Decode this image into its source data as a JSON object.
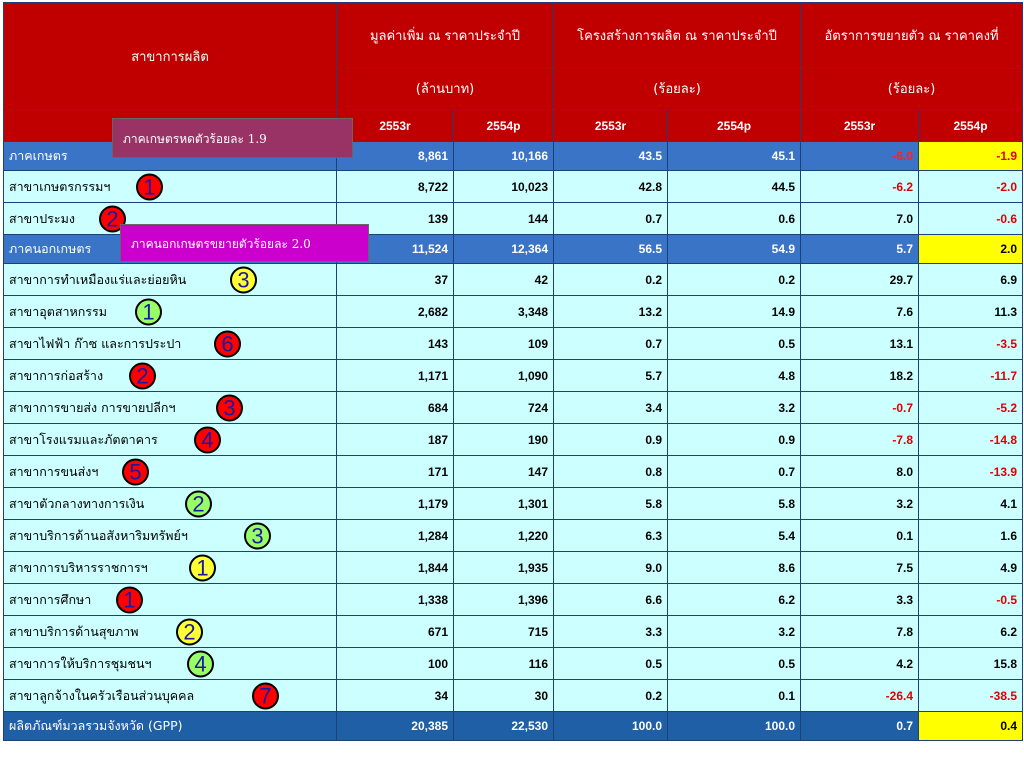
{
  "header": {
    "sector_col": "สาขาการผลิต",
    "groups": [
      {
        "title": "มูลค่าเพิ่ม ณ ราคาประจำปี",
        "unit": "(ล้านบาท)"
      },
      {
        "title": "โครงสร้างการผลิต ณ ราคาประจำปี",
        "unit": "(ร้อยละ)"
      },
      {
        "title": "อัตราการขยายตัว ณ ราคาคงที่",
        "unit": "(ร้อยละ)"
      }
    ],
    "years": [
      "2553r",
      "2554p",
      "2553r",
      "2554p",
      "2553r",
      "2554p"
    ]
  },
  "rows": [
    {
      "name": "ภาคเกษตร",
      "kind": "hl",
      "values": [
        "8,861",
        "10,166",
        "43.5",
        "45.1",
        "-6.0",
        "-1.9"
      ],
      "badge": null
    },
    {
      "name": "สาขาเกษตรกรรมฯ",
      "kind": "row",
      "values": [
        "8,722",
        "10,023",
        "42.8",
        "44.5",
        "-6.2",
        "-2.0"
      ],
      "badge": {
        "num": "1",
        "color": "red",
        "offset": 132
      }
    },
    {
      "name": "สาขาประมง",
      "kind": "row",
      "values": [
        "139",
        "144",
        "0.7",
        "0.6",
        "7.0",
        "-0.6"
      ],
      "badge": {
        "num": "2",
        "color": "red",
        "offset": 95
      }
    },
    {
      "name": "ภาคนอกเกษตร",
      "kind": "hl",
      "values": [
        "11,524",
        "12,364",
        "56.5",
        "54.9",
        "5.7",
        "2.0"
      ],
      "badge": null
    },
    {
      "name": "สาขาการทำเหมืองแร่และย่อยหิน",
      "kind": "row",
      "values": [
        "37",
        "42",
        "0.2",
        "0.2",
        "29.7",
        "6.9"
      ],
      "badge": {
        "num": "3",
        "color": "yellow",
        "offset": 226
      }
    },
    {
      "name": "สาขาอุตสาหกรรม",
      "kind": "row",
      "values": [
        "2,682",
        "3,348",
        "13.2",
        "14.9",
        "7.6",
        "11.3"
      ],
      "badge": {
        "num": "1",
        "color": "green",
        "offset": 131
      }
    },
    {
      "name": "สาขาไฟฟ้า ก๊าซ และการประปา",
      "kind": "row",
      "values": [
        "143",
        "109",
        "0.7",
        "0.5",
        "13.1",
        "-3.5"
      ],
      "badge": {
        "num": "6",
        "color": "red",
        "offset": 210
      }
    },
    {
      "name": "สาขาการก่อสร้าง",
      "kind": "row",
      "values": [
        "1,171",
        "1,090",
        "5.7",
        "4.8",
        "18.2",
        "-11.7"
      ],
      "badge": {
        "num": "2",
        "color": "red",
        "offset": 125
      }
    },
    {
      "name": "สาขาการขายส่ง การขายปลีกฯ",
      "kind": "row",
      "values": [
        "684",
        "724",
        "3.4",
        "3.2",
        "-0.7",
        "-5.2"
      ],
      "badge": {
        "num": "3",
        "color": "red",
        "offset": 212
      }
    },
    {
      "name": "สาขาโรงแรมและภัตตาคาร",
      "kind": "row",
      "values": [
        "187",
        "190",
        "0.9",
        "0.9",
        "-7.8",
        "-14.8"
      ],
      "badge": {
        "num": "4",
        "color": "red",
        "offset": 190
      }
    },
    {
      "name": "สาขาการขนส่งฯ",
      "kind": "row",
      "values": [
        "171",
        "147",
        "0.8",
        "0.7",
        "8.0",
        "-13.9"
      ],
      "badge": {
        "num": "5",
        "color": "red",
        "offset": 118
      }
    },
    {
      "name": "สาขาตัวกลางทางการเงิน",
      "kind": "row",
      "values": [
        "1,179",
        "1,301",
        "5.8",
        "5.8",
        "3.2",
        "4.1"
      ],
      "badge": {
        "num": "2",
        "color": "green",
        "offset": 181
      }
    },
    {
      "name": "สาขาบริการด้านอสังหาริมทรัพย์ฯ",
      "kind": "row",
      "values": [
        "1,284",
        "1,220",
        "6.3",
        "5.4",
        "0.1",
        "1.6"
      ],
      "badge": {
        "num": "3",
        "color": "green",
        "offset": 240
      }
    },
    {
      "name": "สาขาการบริหารราชการฯ",
      "kind": "row",
      "values": [
        "1,844",
        "1,935",
        "9.0",
        "8.6",
        "7.5",
        "4.9"
      ],
      "badge": {
        "num": "1",
        "color": "yellow",
        "offset": 185
      }
    },
    {
      "name": "สาขาการศึกษา",
      "kind": "row",
      "values": [
        "1,338",
        "1,396",
        "6.6",
        "6.2",
        "3.3",
        "-0.5"
      ],
      "badge": {
        "num": "1",
        "color": "red",
        "offset": 112
      }
    },
    {
      "name": "สาขาบริการด้านสุขภาพ",
      "kind": "row",
      "values": [
        "671",
        "715",
        "3.3",
        "3.2",
        "7.8",
        "6.2"
      ],
      "badge": {
        "num": "2",
        "color": "yellow",
        "offset": 172
      }
    },
    {
      "name": "สาขาการให้บริการชุมชนฯ",
      "kind": "row",
      "values": [
        "100",
        "116",
        "0.5",
        "0.5",
        "4.2",
        "15.8"
      ],
      "badge": {
        "num": "4",
        "color": "green",
        "offset": 183
      }
    },
    {
      "name": "สาขาลูกจ้างในครัวเรือนส่วนบุคคล",
      "kind": "row",
      "values": [
        "34",
        "30",
        "0.2",
        "0.1",
        "-26.4",
        "-38.5"
      ],
      "badge": {
        "num": "7",
        "color": "red",
        "offset": 248
      }
    },
    {
      "name": "ผลิตภัณฑ์มวลรวมจังหวัด (GPP)",
      "kind": "total",
      "values": [
        "20,385",
        "22,530",
        "100.0",
        "100.0",
        "0.7",
        "0.4"
      ],
      "badge": null
    }
  ],
  "highlight_cells": [
    0,
    3,
    18
  ],
  "callouts": [
    {
      "text": "ภาคเกษตรหดตัวร้อยละ 1.9",
      "color": "#993366"
    },
    {
      "text": "ภาคนอกเกษตรขยายตัวร้อยละ 2.0",
      "color": "#cc00cc"
    }
  ]
}
